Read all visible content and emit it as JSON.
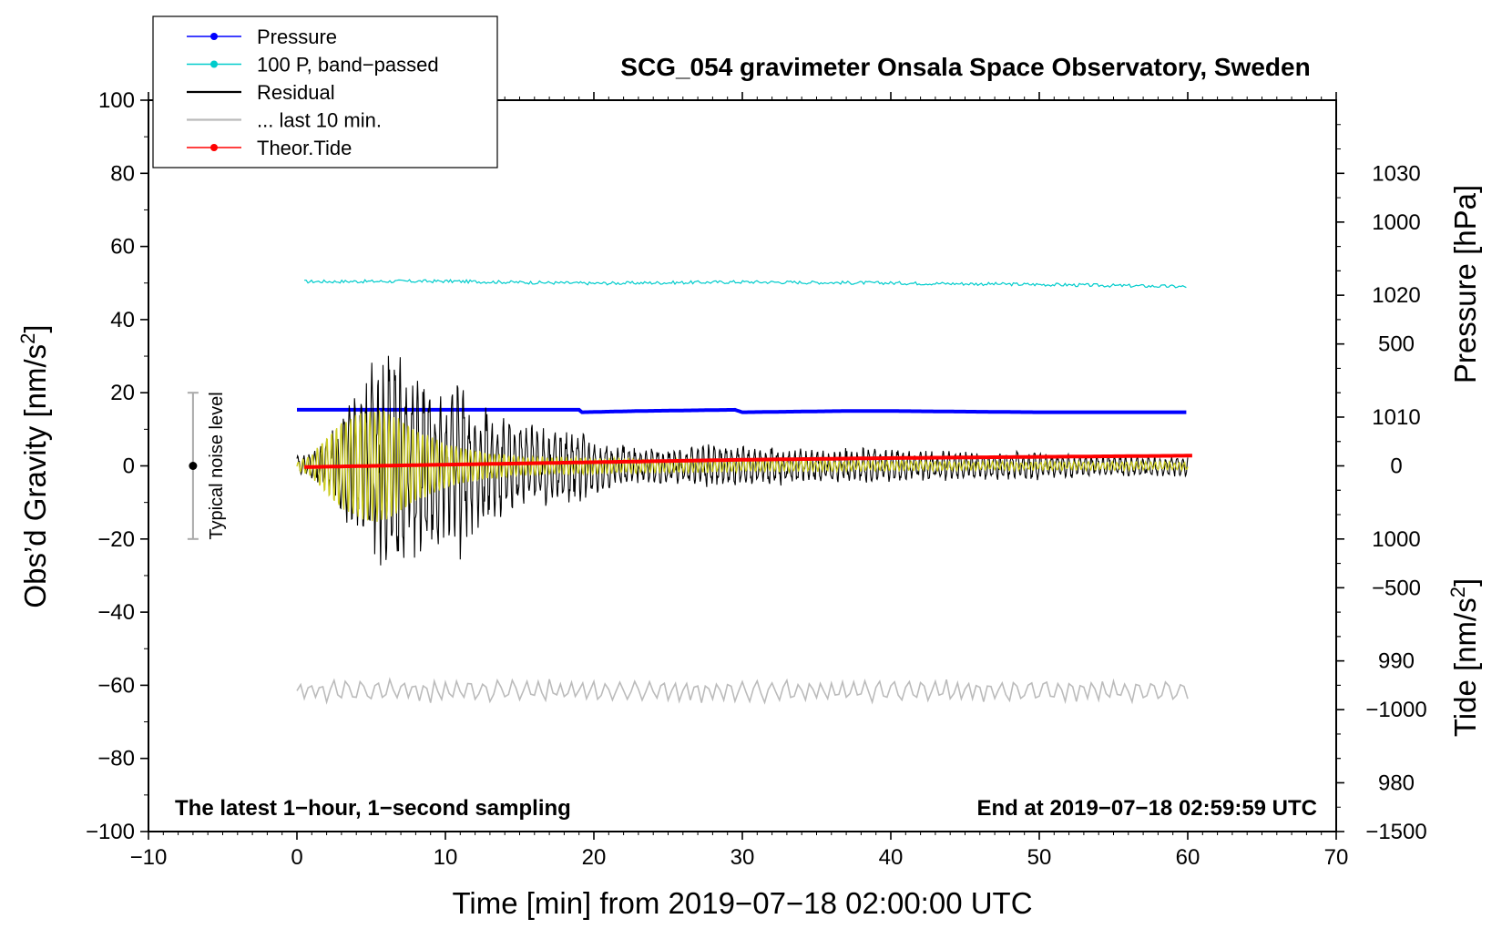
{
  "chart_data": {
    "type": "line",
    "title": "SCG_054 gravimeter Onsala Space Observatory, Sweden",
    "xlabel": "Time [min] from 2019−07−18 02:00:00 UTC",
    "ylabel_left": "Obs’d Gravity [nm/s²]",
    "ylabel_left_main": "Obs’d Gravity [nm/s",
    "ylabel_left_sup": "2",
    "ylabel_left_end": "]",
    "ylabel_right_top": "Pressure [hPa]",
    "ylabel_right_bottom": "Tide [nm/s²]",
    "ylabel_right_bottom_main": "Tide [nm/s",
    "ylabel_right_bottom_sup": "2",
    "ylabel_right_bottom_end": "]",
    "xlim": [
      -10,
      70
    ],
    "ylim": [
      -100,
      100
    ],
    "pressure_ylim": [
      976,
      1036
    ],
    "tide_ylim": [
      -1500,
      1500
    ],
    "x_ticks": [
      -10,
      0,
      10,
      20,
      30,
      40,
      50,
      60,
      70
    ],
    "x_tick_labels": [
      "−10",
      "0",
      "10",
      "20",
      "30",
      "40",
      "50",
      "60",
      "70"
    ],
    "y_ticks": [
      -100,
      -80,
      -60,
      -40,
      -20,
      0,
      20,
      40,
      60,
      80,
      100
    ],
    "y_tick_labels": [
      "−100",
      "−80",
      "−60",
      "−40",
      "−20",
      "0",
      "20",
      "40",
      "60",
      "80",
      "100"
    ],
    "pressure_ticks": [
      980,
      990,
      1000,
      1010,
      1020,
      1030
    ],
    "pressure_tick_labels": [
      "980",
      "990",
      "1000",
      "1010",
      "1020",
      "1030"
    ],
    "tide_ticks": [
      -1500,
      -1000,
      -500,
      0,
      500,
      1000
    ],
    "tide_tick_labels": [
      "−1500",
      "−1000",
      "−500",
      "0",
      "500",
      "1000"
    ],
    "legend": {
      "placement": "top-left",
      "entries": [
        {
          "label": "Pressure",
          "color": "#0000ff",
          "marker": true
        },
        {
          "label": "100 P, band−passed",
          "color": "#00cccc",
          "marker": true
        },
        {
          "label": "Residual",
          "color": "#000000",
          "marker": false
        },
        {
          "label": "... last 10 min.",
          "color": "#bbbbbb",
          "marker": false
        },
        {
          "label": "Theor.Tide",
          "color": "#ff0000",
          "marker": true
        }
      ]
    },
    "series": [
      {
        "name": "Pressure",
        "color": "#0000ff",
        "axis": "pressure",
        "x": [
          0,
          10,
          19,
          19.2,
          23,
          29.5,
          30,
          37,
          40,
          50,
          60
        ],
        "values": [
          1010.6,
          1010.6,
          1010.6,
          1010.4,
          1010.5,
          1010.6,
          1010.4,
          1010.5,
          1010.5,
          1010.4,
          1010.4
        ]
      },
      {
        "name": "100 P, band−passed",
        "color": "#00cccc",
        "axis": "gravity",
        "x": [
          0.5,
          10,
          20,
          30,
          40,
          50,
          60
        ],
        "values": [
          50.4,
          50.5,
          49.9,
          50.3,
          50.0,
          49.6,
          49.0
        ]
      },
      {
        "name": "Residual",
        "color": "#000000",
        "axis": "gravity",
        "envelope_x": [
          0,
          1,
          2,
          3,
          4,
          5,
          6,
          7,
          8,
          9,
          10,
          11,
          12,
          13,
          14,
          15,
          16,
          17,
          18,
          19,
          20,
          22,
          25,
          28,
          30,
          35,
          40,
          45,
          50,
          55,
          60
        ],
        "envelope_values": [
          3,
          4,
          8,
          15,
          22,
          30,
          33,
          30,
          26,
          24,
          22,
          27,
          18,
          16,
          14,
          14,
          12,
          11,
          10,
          11,
          8,
          6,
          5,
          6,
          6,
          5,
          5,
          4,
          4,
          3,
          3
        ]
      },
      {
        "name": "Band-passed residual",
        "color": "#cccc22",
        "axis": "gravity",
        "envelope_x": [
          0,
          1,
          2,
          3,
          4,
          5,
          6,
          7,
          8,
          9,
          10,
          12,
          15,
          20,
          30,
          40,
          50,
          60
        ],
        "envelope_values": [
          1,
          3,
          8,
          12,
          14,
          15,
          15,
          13,
          10,
          8,
          6,
          4,
          2.5,
          2,
          1.5,
          1.2,
          1,
          1
        ]
      },
      {
        "name": "... last 10 min.",
        "color": "#bbbbbb",
        "axis": "gravity",
        "x_range": [
          0,
          60
        ],
        "mean": -61.5,
        "amplitude": 3.5
      },
      {
        "name": "Theor.Tide",
        "color": "#ff0000",
        "axis": "tide",
        "x": [
          0.5,
          10,
          20,
          30,
          40,
          50,
          60.5
        ],
        "values": [
          -5,
          5,
          15,
          25,
          32,
          37,
          42
        ]
      }
    ],
    "noise_bar": {
      "label": "Typical noise level",
      "x": -7,
      "center": 0,
      "low": -20,
      "high": 20
    },
    "annotations": {
      "bottom_left": "The latest 1−hour, 1−second sampling",
      "bottom_right": "End at 2019−07−18 02:59:59 UTC"
    }
  }
}
